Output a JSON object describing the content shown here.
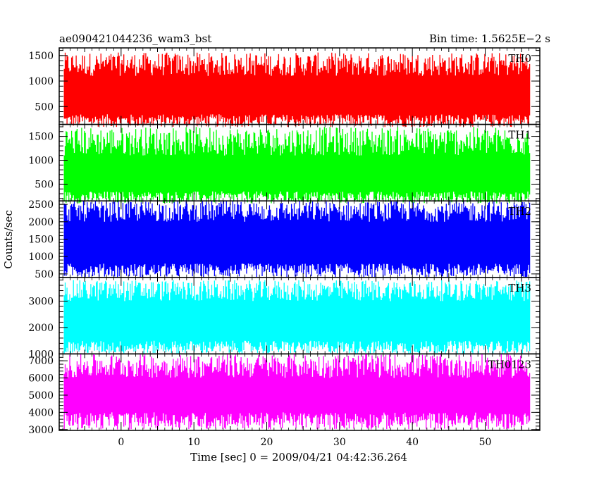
{
  "header": {
    "title": "ae090421044236_wam3_bst",
    "bin_time": "Bin time: 1.5625E−2 s"
  },
  "chart_data": {
    "type": "line",
    "title": "ae090421044236_wam3_bst",
    "ylabel": "Counts/sec",
    "xlabel": "Time [sec] 0 = 2009/04/21 04:42:36.264",
    "bin_time_s": 0.015625,
    "xlim": [
      -8.5,
      57.5
    ],
    "x_range": [
      -7.8,
      56.2
    ],
    "x_ticks": [
      0,
      10,
      20,
      30,
      40,
      50
    ],
    "x_tick_labels": [
      "0",
      "10",
      "20",
      "30",
      "40",
      "50"
    ],
    "panels": [
      {
        "name": "TH0",
        "color": "#ff0000",
        "ylim": [
          150,
          1650
        ],
        "yticks": [
          500,
          1000,
          1500
        ],
        "ytick_labels": [
          "500",
          "1000",
          "1500"
        ],
        "low": [
          100,
          350
        ],
        "high": [
          1100,
          1560
        ]
      },
      {
        "name": "TH1",
        "color": "#00ff00",
        "ylim": [
          150,
          1750
        ],
        "yticks": [
          500,
          1000,
          1500
        ],
        "ytick_labels": [
          "500",
          "1000",
          "1500"
        ],
        "low": [
          100,
          350
        ],
        "high": [
          1100,
          1700
        ]
      },
      {
        "name": "TH2",
        "color": "#0000ff",
        "ylim": [
          400,
          2600
        ],
        "yticks": [
          500,
          1000,
          1500,
          2000,
          2500
        ],
        "ytick_labels": [
          "500",
          "1000",
          "1500",
          "2000",
          "2500"
        ],
        "low": [
          400,
          800
        ],
        "high": [
          2000,
          2600
        ]
      },
      {
        "name": "TH3",
        "color": "#00ffff",
        "ylim": [
          1000,
          3900
        ],
        "yticks": [
          1000,
          2000,
          3000
        ],
        "ytick_labels": [
          "1000",
          "2000",
          "3000"
        ],
        "low": [
          1000,
          1500
        ],
        "high": [
          3000,
          3800
        ]
      },
      {
        "name": "TH0123",
        "color": "#ff00ff",
        "ylim": [
          2950,
          7400
        ],
        "yticks": [
          3000,
          4000,
          5000,
          6000,
          7000
        ],
        "ytick_labels": [
          "3000",
          "4000",
          "5000",
          "6000",
          "7000"
        ],
        "low": [
          3000,
          4000
        ],
        "high": [
          6000,
          7400
        ]
      }
    ]
  }
}
